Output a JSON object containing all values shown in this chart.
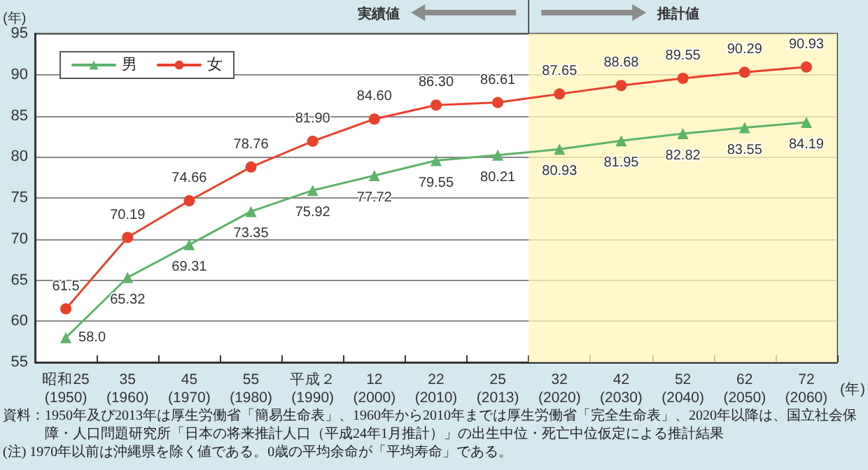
{
  "chart_data": {
    "type": "line",
    "ylabel": "(年)",
    "xlabel": "(年)",
    "categories": [
      "昭和25\n(1950)",
      "35\n(1960)",
      "45\n(1970)",
      "55\n(1980)",
      "平成２\n(1990)",
      "12\n(2000)",
      "22\n(2010)",
      "25\n(2013)",
      "32\n(2020)",
      "42\n(2030)",
      "52\n(2040)",
      "62\n(2050)",
      "72\n(2060)"
    ],
    "series": [
      {
        "name": "男",
        "color": "#5db36a",
        "marker": "triangle",
        "values": [
          58.0,
          65.32,
          69.31,
          73.35,
          75.92,
          77.72,
          79.55,
          80.21,
          80.93,
          81.95,
          82.82,
          83.55,
          84.19
        ],
        "value_labels": [
          "58.0",
          "65.32",
          "69.31",
          "73.35",
          "75.92",
          "77.72",
          "79.55",
          "80.21",
          "80.93",
          "81.95",
          "82.82",
          "83.55",
          "84.19"
        ]
      },
      {
        "name": "女",
        "color": "#e8412c",
        "marker": "circle",
        "values": [
          61.5,
          70.19,
          74.66,
          78.76,
          81.9,
          84.6,
          86.3,
          86.61,
          87.65,
          88.68,
          89.55,
          90.29,
          90.93
        ],
        "value_labels": [
          "61.5",
          "70.19",
          "74.66",
          "78.76",
          "81.90",
          "84.60",
          "86.30",
          "86.61",
          "87.65",
          "88.68",
          "89.55",
          "90.29",
          "90.93"
        ]
      }
    ],
    "ylim": [
      55,
      95
    ],
    "yticks": [
      55,
      60,
      65,
      70,
      75,
      80,
      85,
      90,
      95
    ],
    "grid": "y",
    "legend": "top left",
    "line_style": "solid",
    "bands": [
      {
        "axis": "x",
        "from": "32\n(2020)",
        "to": "72\n(2060)",
        "color": "#fff6b8"
      }
    ],
    "annotations": [
      "実績値",
      "推計値",
      "資料：1950年及び2013年は厚生労働省「簡易生命表」、1960年から2010年までは厚生労働省「完全生命表」、2020年以降は、国立社会保障・人口問題研究所「日本の将来推計人口（平成24年1月推計）」の出生中位・死亡中位仮定による推計結果",
      "(注) 1970年以前は沖縄県を除く値である。0歳の平均余命が「平均寿命」である。"
    ]
  }
}
